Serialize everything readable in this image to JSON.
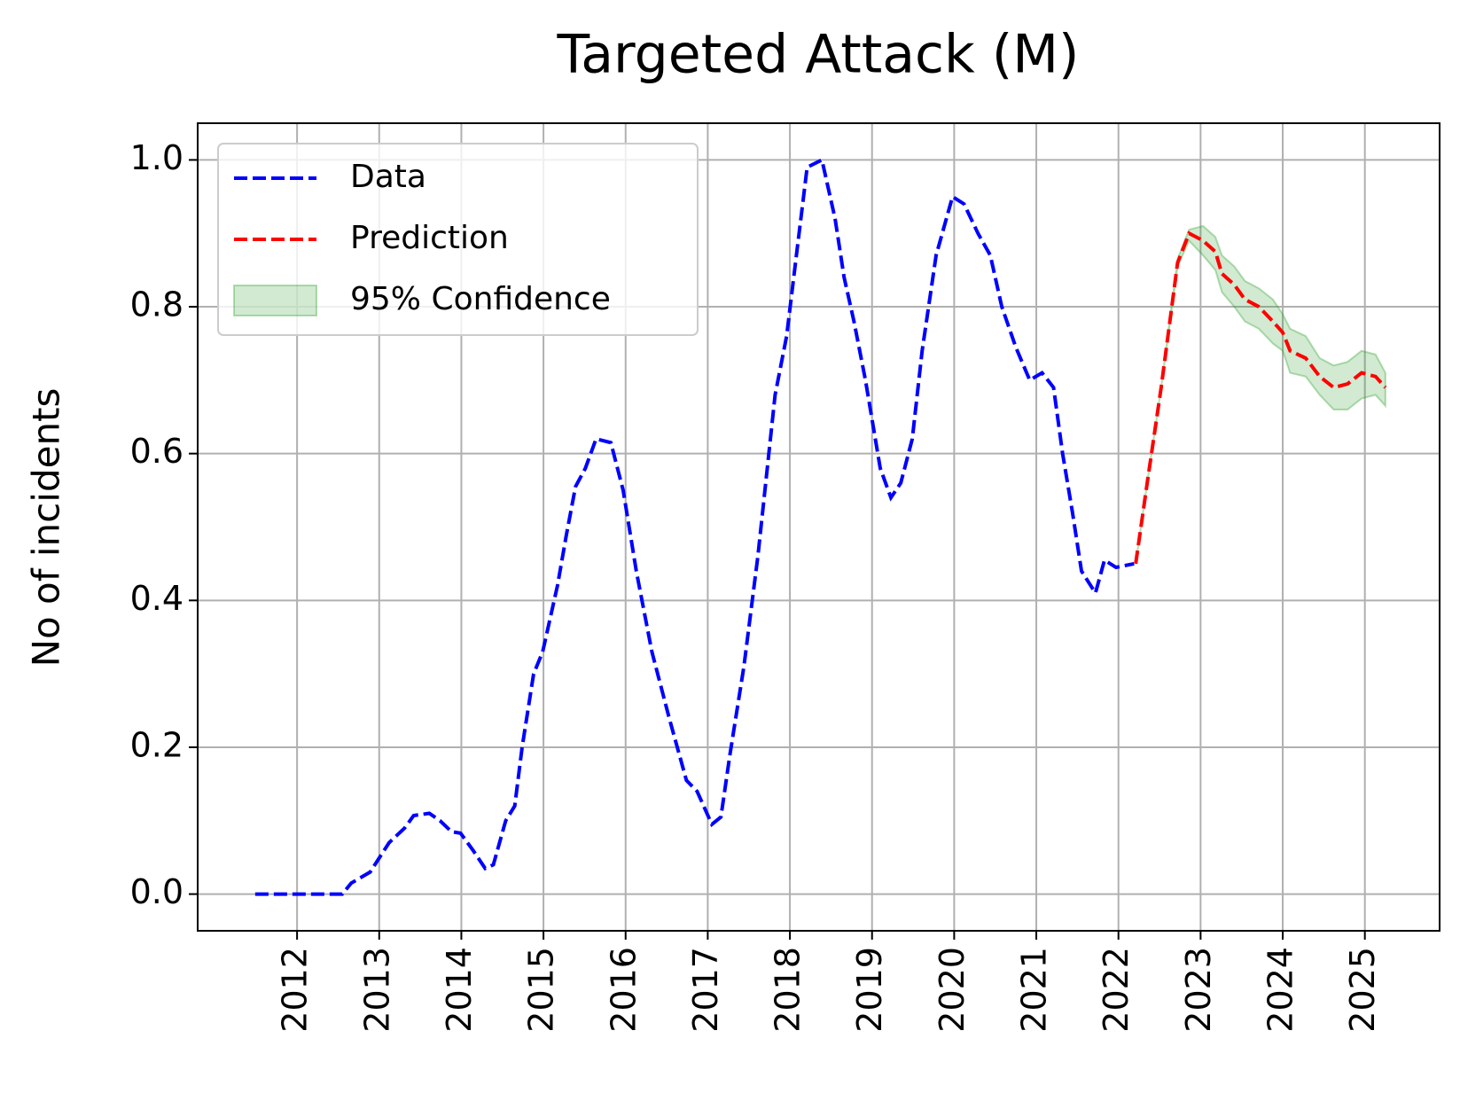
{
  "chart_data": {
    "type": "line",
    "title": "Targeted Attack (M)",
    "ylabel": "No of incidents",
    "xlim": [
      2010.79,
      2025.91
    ],
    "xticks": [
      2012,
      2013,
      2014,
      2015,
      2016,
      2017,
      2018,
      2019,
      2020,
      2021,
      2022,
      2023,
      2024,
      2025
    ],
    "ylim": [
      -0.05,
      1.05
    ],
    "yticks": [
      {
        "value": 0,
        "label": "0.0"
      },
      {
        "value": 0.2,
        "label": "0.2"
      },
      {
        "value": 0.4,
        "label": "0.4"
      },
      {
        "value": 0.6,
        "label": "0.6"
      },
      {
        "value": 0.8,
        "label": "0.8"
      },
      {
        "value": 1,
        "label": "1.0"
      }
    ],
    "grid": true,
    "legend": "upper left",
    "series": [
      {
        "name": "Data",
        "color": "#0000ff",
        "dash": true,
        "x": [
          2011.49,
          2012.55,
          2012.66,
          2012.89,
          2013.12,
          2013.31,
          2013.42,
          2013.61,
          2013.74,
          2013.88,
          2013.99,
          2014.14,
          2014.29,
          2014.39,
          2014.54,
          2014.65,
          2014.74,
          2014.88,
          2014.99,
          2015.17,
          2015.28,
          2015.39,
          2015.51,
          2015.64,
          2015.82,
          2015.97,
          2016.13,
          2016.32,
          2016.53,
          2016.74,
          2016.87,
          2017.05,
          2017.16,
          2017.27,
          2017.44,
          2017.61,
          2017.82,
          2017.96,
          2018.09,
          2018.21,
          2018.39,
          2018.55,
          2018.66,
          2018.78,
          2018.92,
          2019.1,
          2019.23,
          2019.35,
          2019.49,
          2019.61,
          2019.78,
          2019.98,
          2020.12,
          2020.29,
          2020.44,
          2020.58,
          2020.75,
          2020.92,
          2021.07,
          2021.21,
          2021.32,
          2021.44,
          2021.55,
          2021.72,
          2021.83,
          2021.97,
          2022.19
        ],
        "values": [
          0,
          0,
          0.015,
          0.03,
          0.07,
          0.09,
          0.107,
          0.11,
          0.1,
          0.085,
          0.083,
          0.06,
          0.035,
          0.04,
          0.1,
          0.12,
          0.2,
          0.3,
          0.33,
          0.42,
          0.49,
          0.555,
          0.58,
          0.62,
          0.615,
          0.55,
          0.44,
          0.33,
          0.24,
          0.155,
          0.14,
          0.095,
          0.105,
          0.19,
          0.31,
          0.46,
          0.68,
          0.76,
          0.88,
          0.99,
          1.0,
          0.92,
          0.84,
          0.78,
          0.7,
          0.58,
          0.54,
          0.56,
          0.62,
          0.74,
          0.87,
          0.95,
          0.94,
          0.9,
          0.87,
          0.8,
          0.745,
          0.7,
          0.71,
          0.69,
          0.6,
          0.52,
          0.44,
          0.41,
          0.455,
          0.445,
          0.45
        ]
      },
      {
        "name": "Prediction",
        "color": "#ff0000",
        "dash": true,
        "x": [
          2022.21,
          2022.35,
          2022.52,
          2022.72,
          2022.86,
          2023.03,
          2023.18,
          2023.26,
          2023.41,
          2023.54,
          2023.71,
          2023.88,
          2024.0,
          2024.09,
          2024.28,
          2024.45,
          2024.62,
          2024.79,
          2024.96,
          2025.13,
          2025.25
        ],
        "values": [
          0.45,
          0.56,
          0.69,
          0.86,
          0.9,
          0.89,
          0.875,
          0.845,
          0.83,
          0.81,
          0.8,
          0.78,
          0.765,
          0.74,
          0.73,
          0.705,
          0.69,
          0.695,
          0.71,
          0.705,
          0.69
        ]
      }
    ],
    "band": {
      "name": "95% Confidence",
      "color": "#2ca02c",
      "x": [
        2022.21,
        2022.35,
        2022.52,
        2022.72,
        2022.86,
        2023.03,
        2023.18,
        2023.26,
        2023.41,
        2023.54,
        2023.71,
        2023.88,
        2024.0,
        2024.09,
        2024.28,
        2024.45,
        2024.62,
        2024.79,
        2024.96,
        2025.13,
        2025.25
      ],
      "lower": [
        0.45,
        0.56,
        0.69,
        0.855,
        0.89,
        0.87,
        0.85,
        0.82,
        0.8,
        0.78,
        0.77,
        0.75,
        0.74,
        0.71,
        0.705,
        0.68,
        0.66,
        0.66,
        0.675,
        0.68,
        0.665
      ],
      "upper": [
        0.45,
        0.56,
        0.69,
        0.865,
        0.905,
        0.91,
        0.895,
        0.87,
        0.855,
        0.835,
        0.825,
        0.81,
        0.79,
        0.77,
        0.76,
        0.73,
        0.72,
        0.725,
        0.74,
        0.735,
        0.71
      ]
    }
  }
}
